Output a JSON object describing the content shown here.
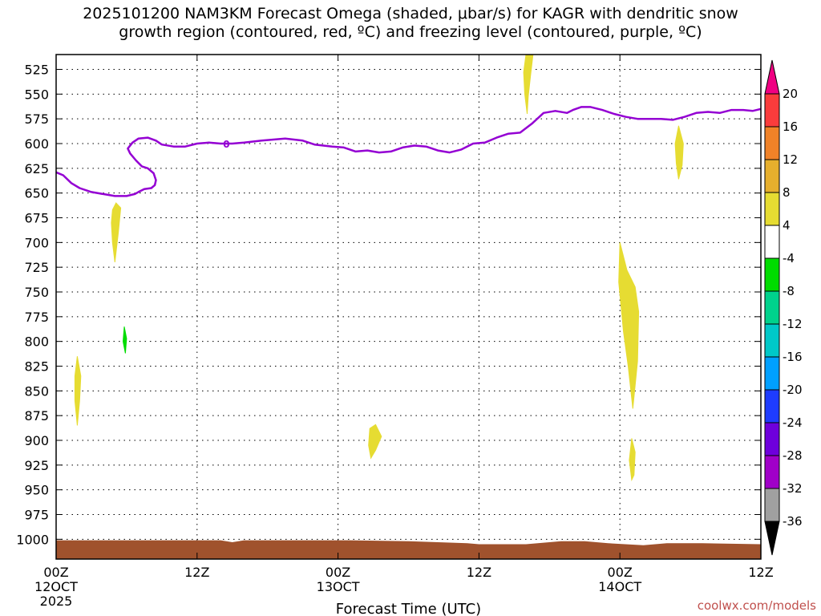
{
  "title": {
    "line1": "2025101200 NAM3KM Forecast Omega (shaded, μbar/s) for KAGR with dendritic snow",
    "line2": "growth region (contoured, red, ºC) and freezing level (contoured, purple, ºC)"
  },
  "credit": "coolwx.com/models",
  "chart_data": {
    "type": "heatmap",
    "title": "2025101200 NAM3KM Forecast Omega (shaded, μbar/s) for KAGR with dendritic snow growth region (contoured, red, ºC) and freezing level (contoured, purple, ºC)",
    "xlabel": "Forecast Time (UTC)",
    "ylabel": "",
    "x_range_hours": [
      0,
      60
    ],
    "y_range_hpa": [
      510,
      1020
    ],
    "y_scale": "pressure",
    "grid": true,
    "x_ticks": [
      {
        "hour": 0,
        "label": "00Z",
        "sub1": "12OCT",
        "sub2": "2025"
      },
      {
        "hour": 12,
        "label": "12Z",
        "sub1": "",
        "sub2": ""
      },
      {
        "hour": 24,
        "label": "00Z",
        "sub1": "13OCT",
        "sub2": ""
      },
      {
        "hour": 36,
        "label": "12Z",
        "sub1": "",
        "sub2": ""
      },
      {
        "hour": 48,
        "label": "00Z",
        "sub1": "14OCT",
        "sub2": ""
      },
      {
        "hour": 60,
        "label": "12Z",
        "sub1": "",
        "sub2": ""
      }
    ],
    "y_ticks": [
      525,
      550,
      575,
      600,
      625,
      650,
      675,
      700,
      725,
      750,
      775,
      800,
      825,
      850,
      875,
      900,
      925,
      950,
      975,
      1000
    ],
    "colorbar": {
      "levels": [
        -36,
        -32,
        -28,
        -24,
        -20,
        -16,
        -12,
        -8,
        -4,
        4,
        8,
        12,
        16,
        20
      ],
      "colors": [
        "#000000",
        "#a0a0a0",
        "#a000c8",
        "#6e00dc",
        "#1e3cff",
        "#00a0ff",
        "#00c8c8",
        "#00d28c",
        "#00dc00",
        "#ffffff",
        "#e6dc32",
        "#e6af2d",
        "#f08228",
        "#fa3c3c",
        "#f00082"
      ]
    },
    "freezing_level": {
      "name": "freezing level",
      "color": "#9400d3",
      "points": [
        [
          0,
          629
        ],
        [
          0.6,
          632
        ],
        [
          1.3,
          640
        ],
        [
          2.0,
          645
        ],
        [
          3.0,
          649
        ],
        [
          4.0,
          651
        ],
        [
          5.0,
          653
        ],
        [
          6.0,
          653
        ],
        [
          6.7,
          651
        ],
        [
          7.0,
          649
        ],
        [
          7.5,
          646
        ],
        [
          8.1,
          645
        ],
        [
          8.4,
          642
        ],
        [
          8.5,
          637
        ],
        [
          8.3,
          630
        ],
        [
          7.8,
          625
        ],
        [
          7.3,
          623
        ],
        [
          6.8,
          617
        ],
        [
          6.3,
          610
        ],
        [
          6.1,
          605
        ],
        [
          6.5,
          599
        ],
        [
          7.0,
          595
        ],
        [
          7.8,
          594
        ],
        [
          8.5,
          597
        ],
        [
          9.0,
          601
        ],
        [
          10.0,
          603
        ],
        [
          11.0,
          603
        ],
        [
          12.0,
          600
        ],
        [
          13.0,
          599
        ],
        [
          14.0,
          600
        ],
        [
          15.0,
          600
        ],
        [
          16.0,
          599
        ],
        [
          17.5,
          597
        ],
        [
          19.5,
          595
        ],
        [
          21.0,
          597
        ],
        [
          22.0,
          601
        ],
        [
          23.5,
          603
        ],
        [
          24.5,
          604
        ],
        [
          25.5,
          608
        ],
        [
          26.5,
          607
        ],
        [
          27.5,
          609
        ],
        [
          28.5,
          608
        ],
        [
          29.5,
          604
        ],
        [
          30.5,
          602
        ],
        [
          31.5,
          603
        ],
        [
          32.5,
          607
        ],
        [
          33.5,
          609
        ],
        [
          34.5,
          606
        ],
        [
          35.5,
          600
        ],
        [
          36.5,
          599
        ],
        [
          37.5,
          594
        ],
        [
          38.5,
          590
        ],
        [
          39.5,
          589
        ],
        [
          40.5,
          580
        ],
        [
          41.5,
          569
        ],
        [
          42.5,
          567
        ],
        [
          43.5,
          569
        ],
        [
          44.0,
          566
        ],
        [
          44.7,
          563
        ],
        [
          45.5,
          563
        ],
        [
          46.5,
          566
        ],
        [
          47.5,
          570
        ],
        [
          48.5,
          573
        ],
        [
          49.5,
          575
        ],
        [
          50.5,
          575
        ],
        [
          51.5,
          575
        ],
        [
          52.5,
          576
        ],
        [
          53.5,
          573
        ],
        [
          54.5,
          569
        ],
        [
          55.5,
          568
        ],
        [
          56.5,
          569
        ],
        [
          57.5,
          566
        ],
        [
          58.5,
          566
        ],
        [
          59.3,
          567
        ],
        [
          60,
          565
        ]
      ]
    },
    "omega_features": [
      {
        "name": "omega 4-8",
        "color": "#e6dc32",
        "points": [
          [
            40.0,
            510
          ],
          [
            40.6,
            510
          ],
          [
            40.4,
            530
          ],
          [
            40.2,
            552
          ],
          [
            40.1,
            570
          ],
          [
            39.9,
            550
          ],
          [
            39.8,
            528
          ]
        ]
      },
      {
        "name": "omega 4-8",
        "color": "#e6dc32",
        "points": [
          [
            53.0,
            582
          ],
          [
            53.4,
            600
          ],
          [
            53.3,
            622
          ],
          [
            53.0,
            636
          ],
          [
            52.8,
            620
          ],
          [
            52.7,
            600
          ]
        ]
      },
      {
        "name": "omega 4-8",
        "color": "#e6dc32",
        "points": [
          [
            5.1,
            660
          ],
          [
            5.5,
            665
          ],
          [
            5.3,
            690
          ],
          [
            5.0,
            720
          ],
          [
            4.8,
            700
          ],
          [
            4.7,
            680
          ],
          [
            4.8,
            667
          ]
        ]
      },
      {
        "name": "omega 4-8",
        "color": "#e6dc32",
        "points": [
          [
            1.8,
            815
          ],
          [
            2.1,
            835
          ],
          [
            2.0,
            860
          ],
          [
            1.8,
            885
          ],
          [
            1.6,
            860
          ],
          [
            1.6,
            835
          ]
        ]
      },
      {
        "name": "omega 4-8",
        "color": "#e6dc32",
        "points": [
          [
            26.7,
            888
          ],
          [
            27.2,
            884
          ],
          [
            27.7,
            896
          ],
          [
            27.2,
            910
          ],
          [
            26.8,
            918
          ],
          [
            26.6,
            905
          ]
        ]
      },
      {
        "name": "omega 4-8",
        "color": "#e6dc32",
        "points": [
          [
            48.0,
            700
          ],
          [
            48.6,
            728
          ],
          [
            49.3,
            745
          ],
          [
            49.6,
            770
          ],
          [
            49.5,
            820
          ],
          [
            49.1,
            868
          ],
          [
            48.7,
            825
          ],
          [
            48.3,
            790
          ],
          [
            47.9,
            740
          ]
        ]
      },
      {
        "name": "omega 4-8",
        "color": "#e6dc32",
        "points": [
          [
            49.0,
            898
          ],
          [
            49.3,
            912
          ],
          [
            49.2,
            935
          ],
          [
            49.0,
            940
          ],
          [
            48.8,
            920
          ]
        ]
      },
      {
        "name": "omega -8 to -4",
        "color": "#00dc00",
        "points": [
          [
            5.8,
            785
          ],
          [
            6.0,
            797
          ],
          [
            5.9,
            812
          ],
          [
            5.7,
            800
          ]
        ]
      }
    ],
    "surface": {
      "name": "terrain",
      "color": "#a0522d",
      "points": [
        [
          0,
          1001
        ],
        [
          5,
          1001
        ],
        [
          10,
          1001
        ],
        [
          14,
          1001
        ],
        [
          15,
          1003
        ],
        [
          16,
          1001
        ],
        [
          20,
          1001
        ],
        [
          25,
          1001
        ],
        [
          30,
          1002
        ],
        [
          35,
          1004
        ],
        [
          36,
          1005
        ],
        [
          40,
          1005
        ],
        [
          43,
          1002
        ],
        [
          45,
          1002
        ],
        [
          47,
          1004
        ],
        [
          50,
          1006
        ],
        [
          52,
          1004
        ],
        [
          55,
          1004
        ],
        [
          60,
          1005
        ]
      ],
      "base": 1020
    }
  }
}
